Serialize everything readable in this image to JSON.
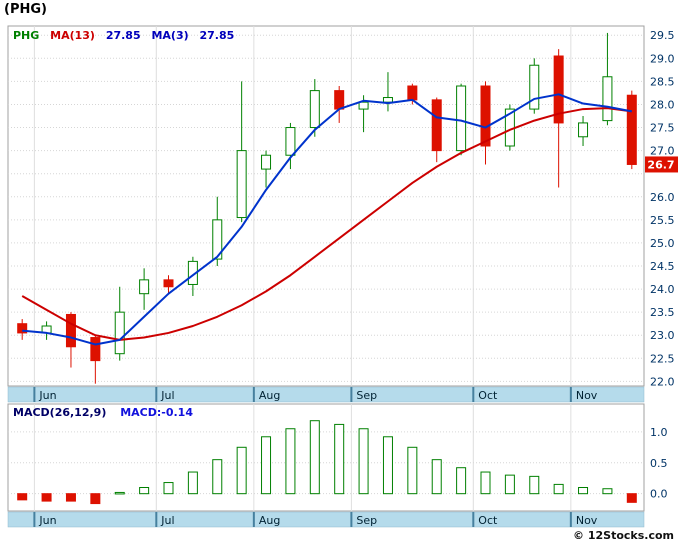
{
  "title": "(PHG)",
  "footer": "© 12Stocks.com",
  "main_chart": {
    "legend": {
      "symbol": "PHG",
      "ma13_label": "MA(13)",
      "ma13_value": "27.85",
      "ma3_label": "MA(3)",
      "ma3_value": "27.85"
    },
    "price_tag": "26.7",
    "colors": {
      "up": "#008000",
      "down": "#dd1100",
      "ma13_line": "#cc0000",
      "ma3_line": "#0033cc",
      "grid": "#d6d6d6",
      "axis_text": "#003366",
      "month_text": "#002233",
      "month_strip": "#b5dbeb",
      "month_tick": "#46809e",
      "panel_border": "#a0a0a0",
      "price_tag_bg": "#dd1100",
      "price_tag_text": "#ffffff"
    }
  },
  "macd_chart": {
    "legend_label": "MACD(26,12,9)",
    "legend_value": "MACD:-0.14"
  },
  "chart_data": [
    {
      "type": "candlestick",
      "title": "PHG weekly candlesticks with MA(13) and MA(3)",
      "x_axis": "weeks (Jun - Nov)",
      "months": [
        {
          "label": "Jun",
          "index": 1
        },
        {
          "label": "Jul",
          "index": 6
        },
        {
          "label": "Aug",
          "index": 10
        },
        {
          "label": "Sep",
          "index": 14
        },
        {
          "label": "Oct",
          "index": 19
        },
        {
          "label": "Nov",
          "index": 23
        }
      ],
      "y_ticks": [
        29.5,
        29.0,
        28.5,
        28.0,
        27.5,
        27.0,
        26.5,
        26.0,
        25.5,
        25.0,
        24.5,
        24.0,
        23.5,
        23.0,
        22.5,
        22.0
      ],
      "ylim": [
        21.9,
        29.7
      ],
      "last_price": 26.7,
      "candles_ohlc": [
        [
          23.25,
          23.35,
          22.9,
          23.05
        ],
        [
          23.05,
          23.3,
          22.9,
          23.2
        ],
        [
          23.45,
          23.5,
          22.3,
          22.75
        ],
        [
          22.95,
          23.0,
          21.95,
          22.45
        ],
        [
          22.6,
          24.05,
          22.45,
          23.5
        ],
        [
          23.9,
          24.45,
          23.55,
          24.2
        ],
        [
          24.2,
          24.3,
          23.9,
          24.05
        ],
        [
          24.1,
          24.7,
          23.85,
          24.6
        ],
        [
          24.65,
          26.0,
          24.5,
          25.5
        ],
        [
          25.55,
          28.5,
          25.45,
          27.0
        ],
        [
          26.6,
          27.0,
          26.2,
          26.9
        ],
        [
          26.9,
          27.6,
          26.6,
          27.5
        ],
        [
          27.5,
          28.55,
          27.3,
          28.3
        ],
        [
          28.3,
          28.4,
          27.6,
          27.9
        ],
        [
          27.9,
          28.2,
          27.4,
          28.05
        ],
        [
          28.05,
          28.7,
          27.85,
          28.15
        ],
        [
          28.4,
          28.45,
          28.0,
          28.1
        ],
        [
          28.1,
          28.15,
          26.75,
          27.0
        ],
        [
          27.0,
          28.45,
          26.9,
          28.4
        ],
        [
          28.4,
          28.5,
          26.7,
          27.1
        ],
        [
          27.1,
          28.0,
          27.0,
          27.9
        ],
        [
          27.9,
          29.0,
          27.8,
          28.85
        ],
        [
          29.05,
          29.2,
          26.2,
          27.6
        ],
        [
          27.3,
          27.75,
          27.1,
          27.6
        ],
        [
          27.65,
          29.55,
          27.55,
          28.6
        ],
        [
          28.2,
          28.3,
          26.6,
          26.7
        ]
      ],
      "series": [
        {
          "name": "MA(13)",
          "color": "#cc0000",
          "values": [
            23.85,
            23.55,
            23.25,
            23.0,
            22.9,
            22.95,
            23.05,
            23.2,
            23.4,
            23.65,
            23.95,
            24.3,
            24.7,
            25.1,
            25.5,
            25.9,
            26.3,
            26.65,
            26.95,
            27.2,
            27.45,
            27.65,
            27.8,
            27.9,
            27.92,
            27.85
          ]
        },
        {
          "name": "MA(3)",
          "color": "#0033cc",
          "values": [
            23.1,
            23.05,
            22.95,
            22.8,
            22.9,
            23.4,
            23.9,
            24.3,
            24.7,
            25.35,
            26.15,
            26.85,
            27.45,
            27.9,
            28.08,
            28.03,
            28.1,
            27.72,
            27.65,
            27.5,
            27.8,
            28.12,
            28.22,
            28.02,
            27.95,
            27.85
          ]
        }
      ]
    },
    {
      "type": "bar",
      "title": "MACD(26,12,9) histogram",
      "current_value": -0.14,
      "y_ticks": [
        1.0,
        0.5,
        0.0
      ],
      "ylim": [
        -0.28,
        1.45
      ],
      "values": [
        -0.1,
        -0.12,
        -0.12,
        -0.16,
        0.02,
        0.1,
        0.18,
        0.35,
        0.55,
        0.75,
        0.92,
        1.05,
        1.18,
        1.12,
        1.05,
        0.92,
        0.75,
        0.55,
        0.42,
        0.35,
        0.3,
        0.28,
        0.15,
        0.1,
        0.08,
        -0.14
      ],
      "months": [
        {
          "label": "Jun",
          "index": 1
        },
        {
          "label": "Jul",
          "index": 6
        },
        {
          "label": "Aug",
          "index": 10
        },
        {
          "label": "Sep",
          "index": 14
        },
        {
          "label": "Oct",
          "index": 19
        },
        {
          "label": "Nov",
          "index": 23
        }
      ]
    }
  ]
}
